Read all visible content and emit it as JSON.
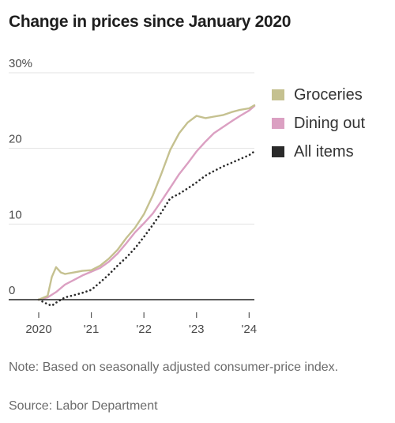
{
  "title": "Change in prices since January 2020",
  "note": "Note: Based on seasonally adjusted consumer-price index.",
  "source": "Source: Labor Department",
  "colors": {
    "groceries": "#c5c190",
    "dining": "#dba0c2",
    "all_items": "#2a2a2a",
    "grid": "#e3e3e3",
    "axis": "#222222"
  },
  "chart_data": {
    "type": "line",
    "title": "Change in prices since January 2020",
    "xlabel": "",
    "ylabel": "",
    "xlim": [
      2020.0,
      2024.1
    ],
    "ylim": [
      0,
      30
    ],
    "y_ticks": [
      {
        "value": 30,
        "label": "30%"
      },
      {
        "value": 20,
        "label": "20"
      },
      {
        "value": 10,
        "label": "10"
      },
      {
        "value": 0,
        "label": "0"
      }
    ],
    "x_ticks": [
      {
        "value": 2020,
        "label": "2020"
      },
      {
        "value": 2021,
        "label": "'21"
      },
      {
        "value": 2022,
        "label": "'22"
      },
      {
        "value": 2023,
        "label": "'23"
      },
      {
        "value": 2024,
        "label": "'24"
      }
    ],
    "grid": true,
    "legend_position": "right",
    "series": [
      {
        "name": "Groceries",
        "style": "solid",
        "points": [
          [
            2020.0,
            0
          ],
          [
            2020.17,
            0.5
          ],
          [
            2020.25,
            3.0
          ],
          [
            2020.33,
            4.3
          ],
          [
            2020.42,
            3.6
          ],
          [
            2020.5,
            3.4
          ],
          [
            2020.67,
            3.6
          ],
          [
            2020.83,
            3.8
          ],
          [
            2021.0,
            3.9
          ],
          [
            2021.17,
            4.5
          ],
          [
            2021.33,
            5.4
          ],
          [
            2021.5,
            6.6
          ],
          [
            2021.67,
            8.2
          ],
          [
            2021.83,
            9.5
          ],
          [
            2022.0,
            11.3
          ],
          [
            2022.17,
            13.8
          ],
          [
            2022.33,
            16.6
          ],
          [
            2022.5,
            19.8
          ],
          [
            2022.67,
            22.0
          ],
          [
            2022.83,
            23.4
          ],
          [
            2023.0,
            24.3
          ],
          [
            2023.17,
            24.0
          ],
          [
            2023.33,
            24.2
          ],
          [
            2023.5,
            24.4
          ],
          [
            2023.67,
            24.8
          ],
          [
            2023.83,
            25.1
          ],
          [
            2024.0,
            25.3
          ],
          [
            2024.1,
            25.7
          ]
        ]
      },
      {
        "name": "Dining out",
        "style": "solid",
        "points": [
          [
            2020.0,
            0
          ],
          [
            2020.17,
            0.3
          ],
          [
            2020.33,
            1.0
          ],
          [
            2020.5,
            2.0
          ],
          [
            2020.67,
            2.6
          ],
          [
            2020.83,
            3.2
          ],
          [
            2021.0,
            3.7
          ],
          [
            2021.17,
            4.2
          ],
          [
            2021.33,
            5.0
          ],
          [
            2021.5,
            6.1
          ],
          [
            2021.67,
            7.5
          ],
          [
            2021.83,
            8.9
          ],
          [
            2022.0,
            10.1
          ],
          [
            2022.17,
            11.4
          ],
          [
            2022.33,
            13.0
          ],
          [
            2022.5,
            14.8
          ],
          [
            2022.67,
            16.6
          ],
          [
            2022.83,
            18.0
          ],
          [
            2023.0,
            19.6
          ],
          [
            2023.17,
            20.9
          ],
          [
            2023.33,
            22.0
          ],
          [
            2023.5,
            22.8
          ],
          [
            2023.67,
            23.6
          ],
          [
            2023.83,
            24.3
          ],
          [
            2024.0,
            25.0
          ],
          [
            2024.1,
            25.6
          ]
        ]
      },
      {
        "name": "All items",
        "style": "dotted",
        "points": [
          [
            2020.0,
            0
          ],
          [
            2020.17,
            -0.6
          ],
          [
            2020.25,
            -0.8
          ],
          [
            2020.33,
            -0.4
          ],
          [
            2020.5,
            0.3
          ],
          [
            2020.67,
            0.6
          ],
          [
            2020.83,
            0.9
          ],
          [
            2021.0,
            1.3
          ],
          [
            2021.17,
            2.3
          ],
          [
            2021.33,
            3.3
          ],
          [
            2021.5,
            4.5
          ],
          [
            2021.67,
            5.6
          ],
          [
            2021.83,
            6.8
          ],
          [
            2022.0,
            8.3
          ],
          [
            2022.17,
            9.9
          ],
          [
            2022.33,
            11.5
          ],
          [
            2022.5,
            13.4
          ],
          [
            2022.67,
            14.0
          ],
          [
            2022.83,
            14.7
          ],
          [
            2023.0,
            15.5
          ],
          [
            2023.17,
            16.4
          ],
          [
            2023.33,
            17.0
          ],
          [
            2023.5,
            17.6
          ],
          [
            2023.67,
            18.1
          ],
          [
            2023.83,
            18.6
          ],
          [
            2024.0,
            19.1
          ],
          [
            2024.1,
            19.6
          ]
        ]
      }
    ]
  }
}
